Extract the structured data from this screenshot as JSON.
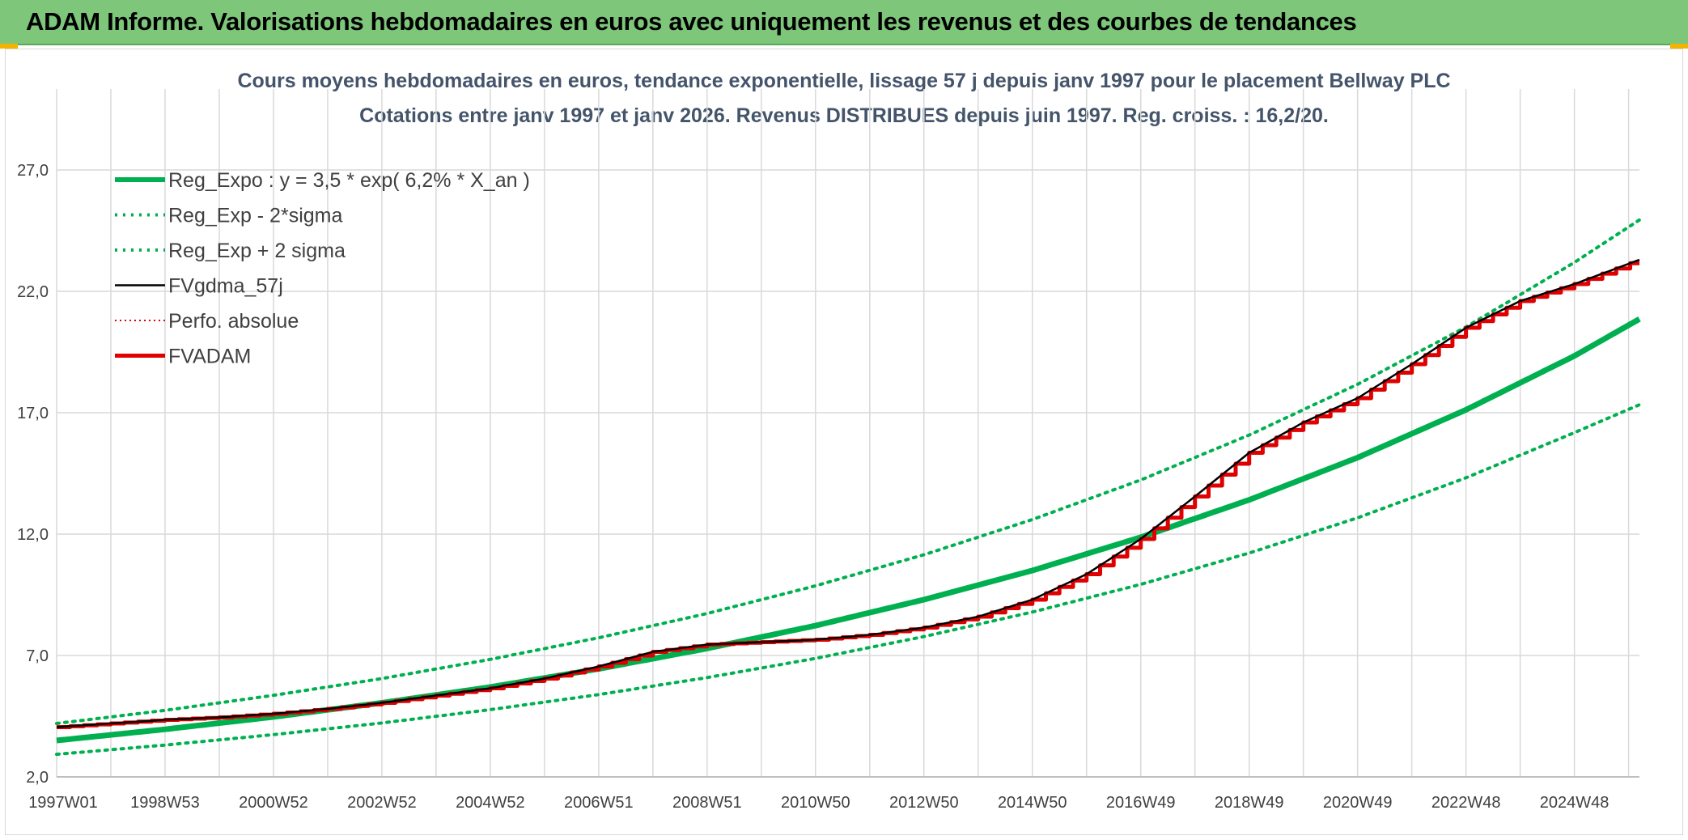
{
  "header": {
    "title": "ADAM Informe. Valorisations hebdomadaires en euros avec uniquement les revenus et des courbes de tendances"
  },
  "colors": {
    "banner": "#7dc67a",
    "trend": "#00b050",
    "black": "#000000",
    "red": "#e00000",
    "grid": "#d9d9d9"
  },
  "chart_data": {
    "type": "line",
    "title": "Cours moyens hebdomadaires en euros, tendance exponentielle, lissage 57 j depuis janv 1997 pour le placement Bellway PLC",
    "subtitle": "Cotations entre janv 1997 et janv 2026. Revenus DISTRIBUES depuis juin 1997. Reg. croiss. : 16,2/20.",
    "ylim": [
      2,
      29
    ],
    "yticks": [
      "2,0",
      "7,0",
      "12,0",
      "17,0",
      "22,0",
      "27,0"
    ],
    "ytick_values": [
      2,
      7,
      12,
      17,
      22,
      27
    ],
    "xticks": [
      "1997W01",
      "1998W53",
      "2000W52",
      "2002W52",
      "2004W52",
      "2006W51",
      "2008W51",
      "2010W50",
      "2012W50",
      "2014W50",
      "2016W49",
      "2018W49",
      "2020W49",
      "2022W48",
      "2024W48"
    ],
    "xtick_values": [
      1997.0,
      1999.0,
      2001.0,
      2003.0,
      2005.0,
      2007.0,
      2009.0,
      2011.0,
      2013.0,
      2015.0,
      2017.0,
      2019.0,
      2021.0,
      2023.0,
      2025.0
    ],
    "xlim": [
      1997.0,
      2026.2
    ],
    "legend_position": "top-left",
    "series": [
      {
        "name": "Reg_Expo : y = 3,5 * exp( 6,2% *  X_an )",
        "style": "thick-solid",
        "color": "#00b050",
        "x": [
          1997,
          1999,
          2001,
          2003,
          2005,
          2007,
          2009,
          2011,
          2013,
          2015,
          2017,
          2019,
          2021,
          2023,
          2025,
          2026.2
        ],
        "y": [
          3.5,
          3.96,
          4.47,
          5.05,
          5.7,
          6.45,
          7.29,
          8.23,
          9.3,
          10.5,
          11.87,
          13.41,
          15.15,
          17.12,
          19.34,
          20.86
        ]
      },
      {
        "name": "Reg_Exp - 2*sigma",
        "style": "dotted",
        "color": "#00b050",
        "x": [
          1997,
          1999,
          2001,
          2003,
          2005,
          2007,
          2009,
          2011,
          2013,
          2015,
          2017,
          2019,
          2021,
          2023,
          2025,
          2026.2
        ],
        "y": [
          2.93,
          3.31,
          3.74,
          4.22,
          4.77,
          5.39,
          6.09,
          6.88,
          7.78,
          8.79,
          9.93,
          11.22,
          12.67,
          14.32,
          16.18,
          17.33
        ]
      },
      {
        "name": "Reg_Exp + 2 sigma",
        "style": "dotted",
        "color": "#00b050",
        "x": [
          1997,
          1999,
          2001,
          2003,
          2005,
          2007,
          2009,
          2011,
          2013,
          2015,
          2017,
          2019,
          2021,
          2023,
          2025,
          2026.2
        ],
        "y": [
          4.2,
          4.74,
          5.36,
          6.05,
          6.84,
          7.73,
          8.73,
          9.87,
          11.15,
          12.6,
          14.23,
          16.08,
          18.17,
          20.53,
          23.19,
          24.94
        ]
      },
      {
        "name": "FVgdma_57j",
        "style": "thin-solid",
        "color": "#000000",
        "x": [
          1997,
          1998,
          1999,
          2000,
          2001,
          2002,
          2003,
          2004,
          2005,
          2006,
          2007,
          2008,
          2009,
          2010,
          2011,
          2012,
          2013,
          2014,
          2015,
          2016,
          2017,
          2018,
          2019,
          2020,
          2021,
          2022,
          2023,
          2024,
          2025,
          2026.2
        ],
        "y": [
          4.05,
          4.2,
          4.35,
          4.45,
          4.6,
          4.8,
          5.05,
          5.35,
          5.65,
          6.05,
          6.55,
          7.15,
          7.45,
          7.55,
          7.65,
          7.85,
          8.15,
          8.6,
          9.3,
          10.35,
          11.8,
          13.55,
          15.35,
          16.6,
          17.6,
          19.0,
          20.5,
          21.6,
          22.3,
          23.3
        ]
      },
      {
        "name": "Perfo. absolue",
        "style": "dotted-thin",
        "color": "#e00000",
        "x": [
          1997,
          1998,
          1999,
          2000,
          2001,
          2002,
          2003,
          2004,
          2005,
          2006,
          2007,
          2008,
          2009,
          2010,
          2011,
          2012,
          2013,
          2014,
          2015,
          2016,
          2017,
          2018,
          2019,
          2020,
          2021,
          2022,
          2023,
          2024,
          2025,
          2026.2
        ],
        "y": [
          4.05,
          4.2,
          4.35,
          4.45,
          4.6,
          4.8,
          5.05,
          5.35,
          5.65,
          6.05,
          6.55,
          7.15,
          7.45,
          7.55,
          7.65,
          7.85,
          8.15,
          8.6,
          9.3,
          10.35,
          11.8,
          13.55,
          15.35,
          16.6,
          17.6,
          19.0,
          20.5,
          21.6,
          22.3,
          23.3
        ]
      },
      {
        "name": "FVADAM",
        "style": "thick-step",
        "color": "#e00000",
        "x": [
          1997,
          1998,
          1999,
          2000,
          2001,
          2002,
          2003,
          2004,
          2005,
          2006,
          2007,
          2008,
          2009,
          2010,
          2011,
          2012,
          2013,
          2014,
          2015,
          2016,
          2017,
          2018,
          2019,
          2020,
          2021,
          2022,
          2023,
          2024,
          2025,
          2026.2
        ],
        "y": [
          4.05,
          4.2,
          4.35,
          4.45,
          4.6,
          4.8,
          5.05,
          5.35,
          5.65,
          6.05,
          6.55,
          7.15,
          7.45,
          7.55,
          7.65,
          7.85,
          8.15,
          8.6,
          9.3,
          10.35,
          11.8,
          13.55,
          15.35,
          16.6,
          17.6,
          19.0,
          20.5,
          21.6,
          22.3,
          23.3
        ]
      }
    ]
  }
}
